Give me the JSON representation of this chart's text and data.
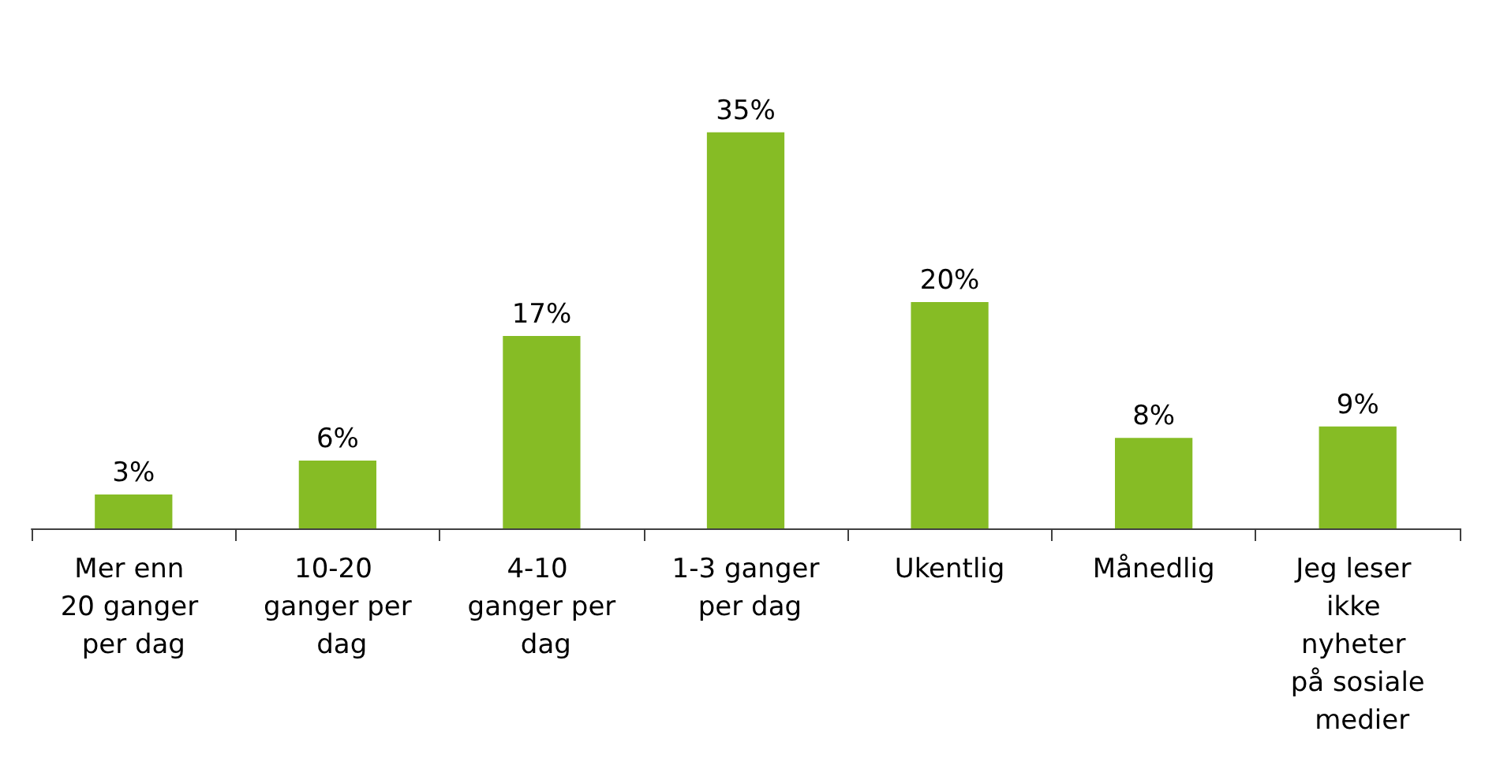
{
  "chart_data": {
    "type": "bar",
    "categories": [
      "Mer enn 20 ganger per dag",
      "10-20 ganger per dag",
      "4-10 ganger per dag",
      "1-3 ganger per dag",
      "Ukentlig",
      "Månedlig",
      "Jeg leser ikke nyheter på sosiale medier"
    ],
    "values": [
      3,
      6,
      17,
      35,
      20,
      8,
      9
    ],
    "value_labels": [
      "3%",
      "6%",
      "17%",
      "35%",
      "20%",
      "8%",
      "9%"
    ],
    "color": "#86bc25"
  }
}
